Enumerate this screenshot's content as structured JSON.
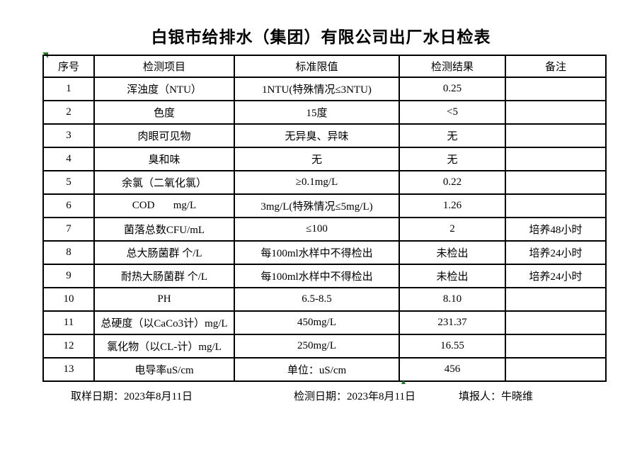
{
  "title": "白银市给排水（集团）有限公司出厂水日检表",
  "table": {
    "headers": [
      "序号",
      "检测项目",
      "标准限值",
      "检测结果",
      "备注"
    ],
    "column_keys": [
      "index",
      "item",
      "limit",
      "result",
      "note"
    ],
    "rows": [
      [
        "1",
        "浑浊度（NTU）",
        "1NTU(特殊情况≤3NTU)",
        "0.25",
        ""
      ],
      [
        "2",
        "色度",
        "15度",
        "<5",
        ""
      ],
      [
        "3",
        "肉眼可见物",
        "无异臭、异味",
        "无",
        ""
      ],
      [
        "4",
        "臭和味",
        "无",
        "无",
        ""
      ],
      [
        "5",
        "余氯（二氧化氯）",
        "≥0.1mg/L",
        "0.22",
        ""
      ],
      [
        "6",
        "COD       mg/L",
        "3mg/L(特殊情况≤5mg/L)",
        "1.26",
        ""
      ],
      [
        "7",
        "菌落总数CFU/mL",
        "≤100",
        "2",
        "培养48小时"
      ],
      [
        "8",
        "总大肠菌群 个/L",
        "每100ml水样中不得检出",
        "未检出",
        "培养24小时"
      ],
      [
        "9",
        "耐热大肠菌群 个/L",
        "每100ml水样中不得检出",
        "未检出",
        "培养24小时"
      ],
      [
        "10",
        "PH",
        "6.5-8.5",
        "8.10",
        ""
      ],
      [
        "11",
        "总硬度（以CaCo3计）mg/L",
        "450mg/L",
        "231.37",
        ""
      ],
      [
        "12",
        "氯化物（以CL-计）mg/L",
        "250mg/L",
        "16.55",
        ""
      ],
      [
        "13",
        "电导率uS/cm",
        "单位：uS/cm",
        "456",
        ""
      ]
    ]
  },
  "footer": {
    "sampling_date": "取样日期：2023年8月11日",
    "testing_date": "检测日期：2023年8月11日",
    "reporter": "填报人：牛晓维"
  },
  "colors": {
    "marker_green": "#1a7a1e",
    "border_black": "#000000",
    "background": "#ffffff"
  }
}
